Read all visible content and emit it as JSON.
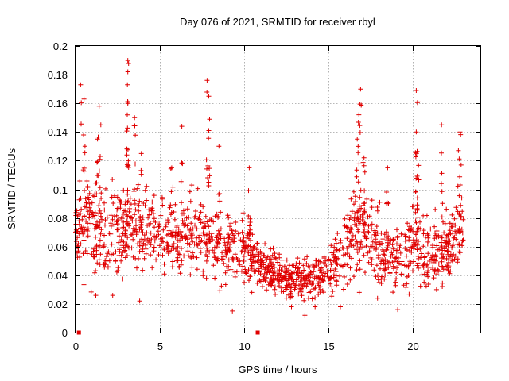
{
  "chart_data": {
    "type": "scatter",
    "marker": "plus",
    "color": "#e00000",
    "title": "Day 076 of 2021, SRMTID for receiver rbyl",
    "xlabel": "GPS time / hours",
    "ylabel": "SRMTID / TECUs",
    "xlim": [
      0,
      24
    ],
    "ylim": [
      0,
      0.2
    ],
    "xticks": [
      0,
      5,
      10,
      15,
      20
    ],
    "yticks": [
      0,
      0.02,
      0.04,
      0.06,
      0.08,
      0.1,
      0.12,
      0.14,
      0.16,
      0.18,
      0.2
    ],
    "xtick_labels": [
      "0",
      "5",
      "10",
      "15",
      "20"
    ],
    "ytick_labels": [
      "0",
      "0.02",
      "0.04",
      "0.06",
      "0.08",
      "0.1",
      "0.12",
      "0.14",
      "0.16",
      "0.18",
      "0.2"
    ],
    "grid": true,
    "markers_at_zero": [
      0.2,
      10.8
    ],
    "envelope": {
      "description": "approximate per-hour central value and spread of the point cloud",
      "hours": [
        0,
        1,
        2,
        3,
        4,
        5,
        6,
        7,
        8,
        9,
        10,
        11,
        12,
        13,
        14,
        15,
        16,
        17,
        18,
        19,
        20,
        21,
        22,
        23
      ],
      "center": [
        0.075,
        0.07,
        0.068,
        0.072,
        0.075,
        0.068,
        0.065,
        0.066,
        0.065,
        0.058,
        0.058,
        0.045,
        0.04,
        0.035,
        0.038,
        0.042,
        0.06,
        0.075,
        0.058,
        0.052,
        0.06,
        0.055,
        0.06,
        0.07
      ],
      "spread": [
        0.028,
        0.03,
        0.028,
        0.03,
        0.025,
        0.022,
        0.022,
        0.024,
        0.024,
        0.022,
        0.02,
        0.014,
        0.012,
        0.012,
        0.013,
        0.015,
        0.022,
        0.026,
        0.022,
        0.02,
        0.024,
        0.022,
        0.022,
        0.018
      ]
    },
    "peaks": [
      {
        "x": 0.3,
        "y": 0.173
      },
      {
        "x": 0.5,
        "y": 0.163
      },
      {
        "x": 1.4,
        "y": 0.158
      },
      {
        "x": 1.5,
        "y": 0.145
      },
      {
        "x": 3.1,
        "y": 0.19
      },
      {
        "x": 3.1,
        "y": 0.182
      },
      {
        "x": 3.1,
        "y": 0.16
      },
      {
        "x": 3.5,
        "y": 0.15
      },
      {
        "x": 6.3,
        "y": 0.144
      },
      {
        "x": 7.8,
        "y": 0.176
      },
      {
        "x": 7.9,
        "y": 0.165
      },
      {
        "x": 7.9,
        "y": 0.141
      },
      {
        "x": 8.5,
        "y": 0.13
      },
      {
        "x": 16.9,
        "y": 0.17
      },
      {
        "x": 16.8,
        "y": 0.152
      },
      {
        "x": 20.2,
        "y": 0.169
      },
      {
        "x": 20.3,
        "y": 0.161
      },
      {
        "x": 20.2,
        "y": 0.14
      },
      {
        "x": 21.7,
        "y": 0.145
      },
      {
        "x": 22.8,
        "y": 0.14
      },
      {
        "x": 22.7,
        "y": 0.127
      },
      {
        "x": 3.9,
        "y": 0.125
      },
      {
        "x": 1.3,
        "y": 0.135
      },
      {
        "x": 16.7,
        "y": 0.135
      },
      {
        "x": 10.3,
        "y": 0.115
      },
      {
        "x": 17.1,
        "y": 0.122
      },
      {
        "x": 18.5,
        "y": 0.115
      },
      {
        "x": 5.7,
        "y": 0.115
      }
    ],
    "lows": [
      {
        "x": 9.3,
        "y": 0.015
      },
      {
        "x": 13.6,
        "y": 0.012
      },
      {
        "x": 19.1,
        "y": 0.016
      },
      {
        "x": 12.8,
        "y": 0.018
      },
      {
        "x": 14.2,
        "y": 0.018
      },
      {
        "x": 3.8,
        "y": 0.022
      },
      {
        "x": 1.2,
        "y": 0.026
      },
      {
        "x": 2.2,
        "y": 0.026
      },
      {
        "x": 15.7,
        "y": 0.018
      },
      {
        "x": 21.4,
        "y": 0.03
      }
    ],
    "num_points": 1500
  }
}
